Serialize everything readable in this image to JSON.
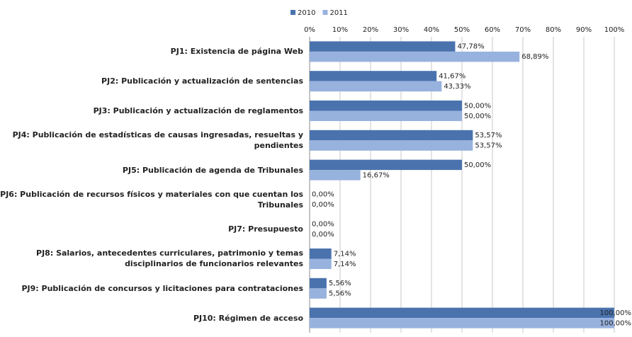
{
  "chart_data": {
    "type": "bar",
    "orientation": "horizontal",
    "categories": [
      "PJ1: Existencia de página Web",
      "PJ2: Publicación y actualización de sentencias",
      "PJ3: Publicación y actualización de reglamentos",
      "PJ4: Publicación de estadísticas de causas ingresadas, resueltas y pendientes",
      "PJ5: Publicación de agenda de Tribunales",
      "PJ6: Publicación de recursos físicos y materiales con que cuentan los Tribunales",
      "PJ7: Presupuesto",
      "PJ8: Salarios, antecedentes curriculares, patrimonio y temas disciplinarios de funcionarios relevantes",
      "PJ9: Publicación de concursos y licitaciones para contrataciones",
      "PJ10: Régimen de acceso"
    ],
    "series": [
      {
        "name": "2010",
        "color": "#4a73ae",
        "values": [
          47.78,
          41.67,
          50,
          53.57,
          50,
          0,
          0,
          7.14,
          5.56,
          100
        ],
        "value_labels": [
          "47,78%",
          "41,67%",
          "50,00%",
          "53,57%",
          "50,00%",
          "0,00%",
          "0,00%",
          "7,14%",
          "5,56%",
          "100,00%"
        ]
      },
      {
        "name": "2011",
        "color": "#98b2de",
        "values": [
          68.89,
          43.33,
          50,
          53.57,
          16.67,
          0,
          0,
          7.14,
          5.56,
          100
        ],
        "value_labels": [
          "68,89%",
          "43,33%",
          "50,00%",
          "53,57%",
          "16,67%",
          "0,00%",
          "0,00%",
          "7,14%",
          "5,56%",
          "100,00%"
        ]
      }
    ],
    "xlim": [
      0,
      100
    ],
    "xticks": [
      {
        "value": 0,
        "label": "0%"
      },
      {
        "value": 10,
        "label": "10%"
      },
      {
        "value": 20,
        "label": "20%"
      },
      {
        "value": 30,
        "label": "30%"
      },
      {
        "value": 40,
        "label": "40%"
      },
      {
        "value": 50,
        "label": "50%"
      },
      {
        "value": 60,
        "label": "60%"
      },
      {
        "value": 70,
        "label": "70%"
      },
      {
        "value": 80,
        "label": "80%"
      },
      {
        "value": 90,
        "label": "90%"
      },
      {
        "value": 100,
        "label": "100%"
      }
    ],
    "grid": true,
    "legend": "top"
  }
}
